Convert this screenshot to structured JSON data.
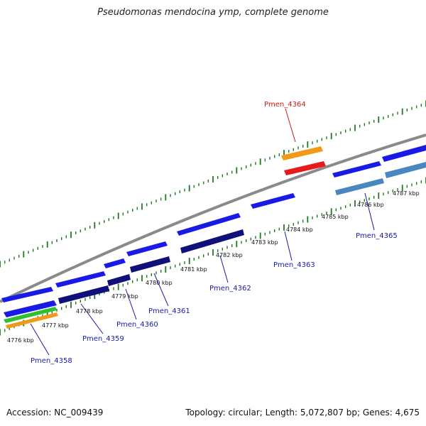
{
  "title": "Pseudomonas mendocina ymp, complete genome",
  "footer": {
    "accession": "Accession: NC_009439",
    "summary": "Topology: circular; Length: 5,072,807 bp; Genes: 4,675"
  },
  "colors": {
    "backbone": "#8a8a8a",
    "ticks": "#1f7a1f",
    "gene_blue": "#1a1ae6",
    "gene_navy": "#10107a",
    "gene_steel": "#4a86c0",
    "gene_orange": "#f09a1a",
    "gene_red": "#e61a1a",
    "gene_green": "#2ec02e",
    "label_blue": "#1a1aa8",
    "label_red": "#cc1a1a"
  },
  "tick_labels": [
    "4776 kbp",
    "4777 kbp",
    "4778 kbp",
    "4779 kbp",
    "4780 kbp",
    "4781 kbp",
    "4782 kbp",
    "4783 kbp",
    "4784 kbp",
    "4785 kbp",
    "4786 kbp",
    "4787 kbp"
  ],
  "gene_labels": [
    {
      "id": "Pmen_4358",
      "color": "label_blue"
    },
    {
      "id": "Pmen_4359",
      "color": "label_blue"
    },
    {
      "id": "Pmen_4360",
      "color": "label_blue"
    },
    {
      "id": "Pmen_4361",
      "color": "label_blue"
    },
    {
      "id": "Pmen_4362",
      "color": "label_blue"
    },
    {
      "id": "Pmen_4363",
      "color": "label_blue"
    },
    {
      "id": "Pmen_4364",
      "color": "label_red"
    },
    {
      "id": "Pmen_4365",
      "color": "label_blue"
    }
  ]
}
